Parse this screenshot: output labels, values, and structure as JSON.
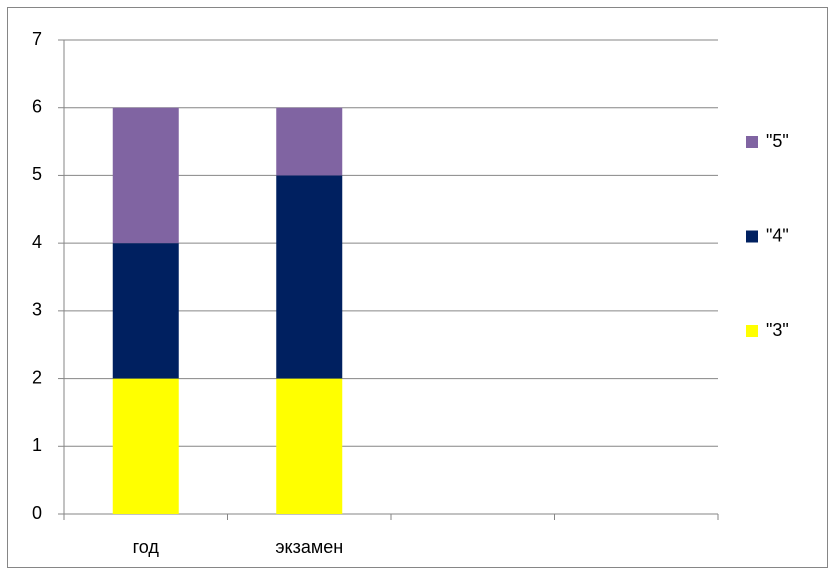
{
  "chart_data": {
    "type": "stacked_bar",
    "categories": [
      "год",
      "экзамен",
      null,
      null
    ],
    "series": [
      {
        "name": "\"3\"",
        "color": "#ffff00",
        "values": [
          2,
          2,
          null,
          null
        ]
      },
      {
        "name": "\"4\"",
        "color": "#002060",
        "values": [
          2,
          3,
          null,
          null
        ]
      },
      {
        "name": "\"5\"",
        "color": "#8064a2",
        "values": [
          2,
          1,
          null,
          null
        ]
      }
    ],
    "ylim": [
      0,
      7
    ],
    "yticks": [
      0,
      1,
      2,
      3,
      4,
      5,
      6,
      7
    ],
    "grid": true,
    "legend": "right"
  }
}
